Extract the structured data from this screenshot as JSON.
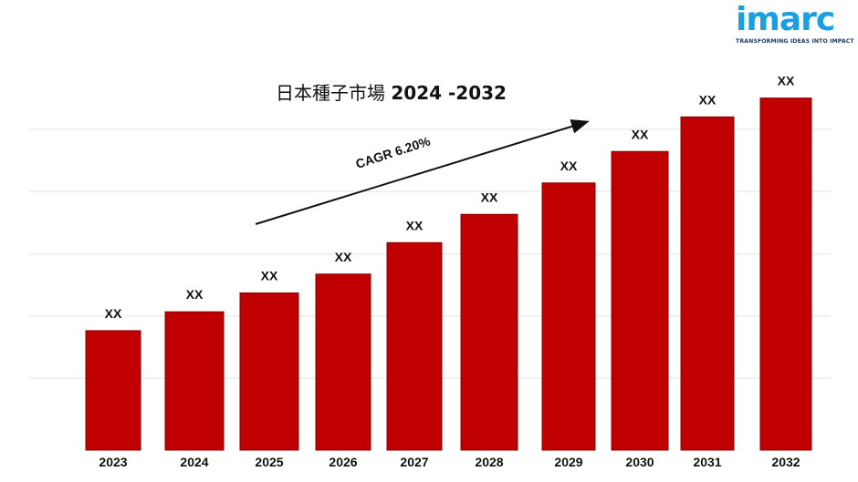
{
  "logo": {
    "name": "imarc",
    "tagline": "TRANSFORMING IDEAS INTO IMPACT",
    "color": "#1a9fe0"
  },
  "title": {
    "text": "日本種子市場",
    "years": "2024 -2032"
  },
  "annotation": {
    "cagr_label": "CAGR 6.20%"
  },
  "chart_data": {
    "type": "bar",
    "title": "日本種子市場 2024 -2032",
    "categories": [
      "2023",
      "2024",
      "2025",
      "2026",
      "2027",
      "2028",
      "2029",
      "2030",
      "2031",
      "2032"
    ],
    "values": [
      38,
      44,
      50,
      56,
      66,
      75,
      85,
      95,
      106,
      112
    ],
    "data_labels": [
      "XX",
      "XX",
      "XX",
      "XX",
      "XX",
      "XX",
      "XX",
      "XX",
      "XX",
      "XX"
    ],
    "ylim": [
      0,
      120
    ],
    "grid": true,
    "bar_color": "#c00000",
    "annotation": "CAGR 6.20%"
  }
}
